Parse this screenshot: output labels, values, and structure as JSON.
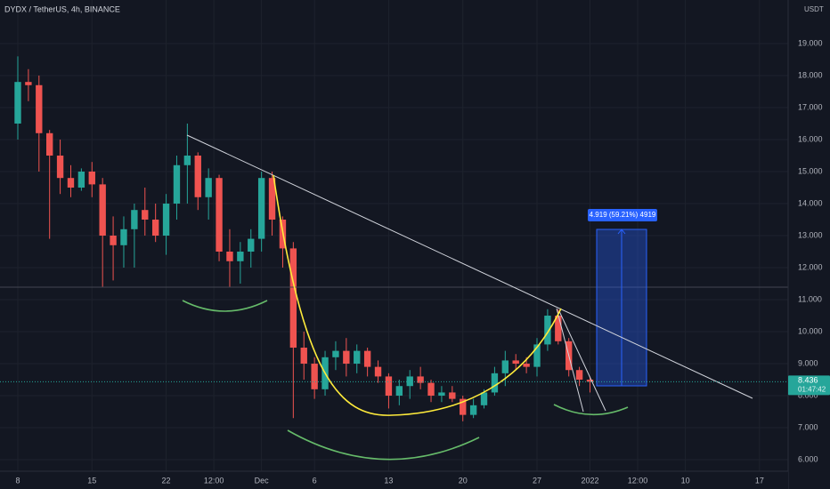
{
  "chart_data": {
    "type": "candlestick",
    "title": "DYDX / TetherUS, 4h, BINANCE",
    "y_unit": "USDT",
    "x": [
      0,
      1,
      2,
      3,
      4,
      5,
      6,
      7,
      8,
      9,
      10,
      11,
      12,
      13,
      14,
      15,
      16,
      17,
      18,
      19,
      20,
      21,
      22,
      23,
      24,
      25,
      26,
      27,
      28,
      29,
      30,
      31,
      32,
      33,
      34,
      35,
      36,
      37,
      38,
      39,
      40,
      41,
      42,
      43,
      44,
      45,
      46,
      47,
      48,
      49,
      50,
      51,
      52,
      53,
      54
    ],
    "open": [
      16.5,
      17.8,
      17.7,
      16.2,
      15.5,
      14.8,
      14.5,
      15.0,
      14.6,
      13.0,
      12.7,
      13.2,
      13.8,
      13.5,
      13.0,
      14.0,
      15.2,
      15.5,
      14.2,
      14.8,
      12.5,
      12.2,
      12.5,
      12.9,
      14.8,
      13.5,
      12.6,
      9.5,
      9.0,
      8.2,
      9.2,
      9.4,
      9.0,
      9.4,
      8.9,
      8.6,
      8.0,
      8.3,
      8.6,
      8.4,
      8.0,
      8.1,
      7.9,
      7.4,
      7.7,
      8.1,
      8.7,
      9.1,
      9.0,
      8.9,
      9.6,
      10.5,
      9.7,
      8.8,
      8.5
    ],
    "high": [
      18.6,
      18.2,
      18.0,
      16.3,
      16.0,
      15.2,
      15.1,
      15.3,
      14.8,
      13.6,
      13.6,
      14.0,
      14.5,
      14.0,
      14.3,
      15.5,
      16.5,
      15.6,
      15.1,
      14.9,
      13.2,
      12.8,
      13.2,
      15.0,
      15.0,
      13.6,
      12.8,
      10.0,
      9.2,
      9.4,
      9.7,
      9.8,
      9.6,
      9.5,
      9.1,
      8.7,
      8.5,
      8.8,
      8.9,
      8.5,
      8.3,
      8.3,
      8.0,
      7.9,
      8.2,
      8.9,
      9.4,
      9.3,
      9.2,
      9.8,
      10.7,
      10.7,
      9.8,
      8.9,
      8.6
    ],
    "low": [
      16.0,
      17.2,
      15.0,
      12.9,
      14.3,
      14.2,
      14.4,
      14.2,
      11.4,
      11.6,
      12.0,
      12.0,
      13.0,
      12.8,
      12.4,
      13.5,
      14.0,
      13.8,
      13.5,
      12.2,
      11.4,
      11.5,
      12.0,
      12.5,
      13.0,
      12.0,
      7.3,
      8.5,
      7.9,
      8.0,
      8.8,
      8.6,
      8.7,
      8.6,
      8.4,
      7.6,
      7.7,
      7.9,
      8.2,
      7.8,
      7.8,
      7.8,
      7.2,
      7.3,
      7.6,
      8.0,
      8.3,
      8.8,
      8.7,
      8.6,
      9.4,
      9.6,
      8.6,
      8.3,
      8.1
    ],
    "close": [
      17.8,
      17.7,
      16.2,
      15.5,
      14.8,
      14.5,
      15.0,
      14.6,
      13.0,
      12.7,
      13.2,
      13.8,
      13.5,
      13.0,
      14.0,
      15.2,
      15.5,
      14.2,
      14.8,
      12.5,
      12.2,
      12.5,
      12.9,
      14.8,
      13.5,
      12.6,
      9.5,
      9.0,
      8.2,
      9.2,
      9.4,
      9.0,
      9.4,
      8.9,
      8.6,
      8.0,
      8.3,
      8.6,
      8.4,
      8.0,
      8.1,
      7.9,
      7.4,
      7.7,
      8.1,
      8.7,
      9.1,
      9.0,
      8.9,
      9.6,
      10.5,
      9.7,
      8.8,
      8.5,
      8.436
    ],
    "up_color": "#26a69a",
    "down_color": "#ef5350",
    "xlim": [
      -1.68,
      72.7
    ],
    "xticks": [
      {
        "value": 0,
        "label": "8"
      },
      {
        "value": 7,
        "label": "15"
      },
      {
        "value": 14,
        "label": "22"
      },
      {
        "value": 18.5,
        "label": "12:00"
      },
      {
        "value": 23,
        "label": "Dec"
      },
      {
        "value": 28,
        "label": "6"
      },
      {
        "value": 35,
        "label": "13"
      },
      {
        "value": 42,
        "label": "20"
      },
      {
        "value": 49,
        "label": "27"
      },
      {
        "value": 54,
        "label": "2022"
      },
      {
        "value": 58.5,
        "label": "12:00"
      },
      {
        "value": 63,
        "label": "10"
      },
      {
        "value": 70,
        "label": "17"
      }
    ],
    "ylim": [
      5.64,
      20.36
    ],
    "yticks": [
      {
        "value": 6,
        "label": "6.000"
      },
      {
        "value": 7,
        "label": "7.000"
      },
      {
        "value": 8,
        "label": "8.000"
      },
      {
        "value": 9,
        "label": "9.000"
      },
      {
        "value": 10,
        "label": "10.000"
      },
      {
        "value": 11,
        "label": "11.000"
      },
      {
        "value": 12,
        "label": "12.000"
      },
      {
        "value": 13,
        "label": "13.000"
      },
      {
        "value": 14,
        "label": "14.000"
      },
      {
        "value": 15,
        "label": "15.000"
      },
      {
        "value": 16,
        "label": "16.000"
      },
      {
        "value": 17,
        "label": "17.000"
      },
      {
        "value": 18,
        "label": "18.000"
      },
      {
        "value": 19,
        "label": "19.000"
      }
    ],
    "grid": true,
    "last_price": 8.436,
    "countdown": "01:47:42",
    "measure_label": "4.919 (59.21%) 4919"
  }
}
